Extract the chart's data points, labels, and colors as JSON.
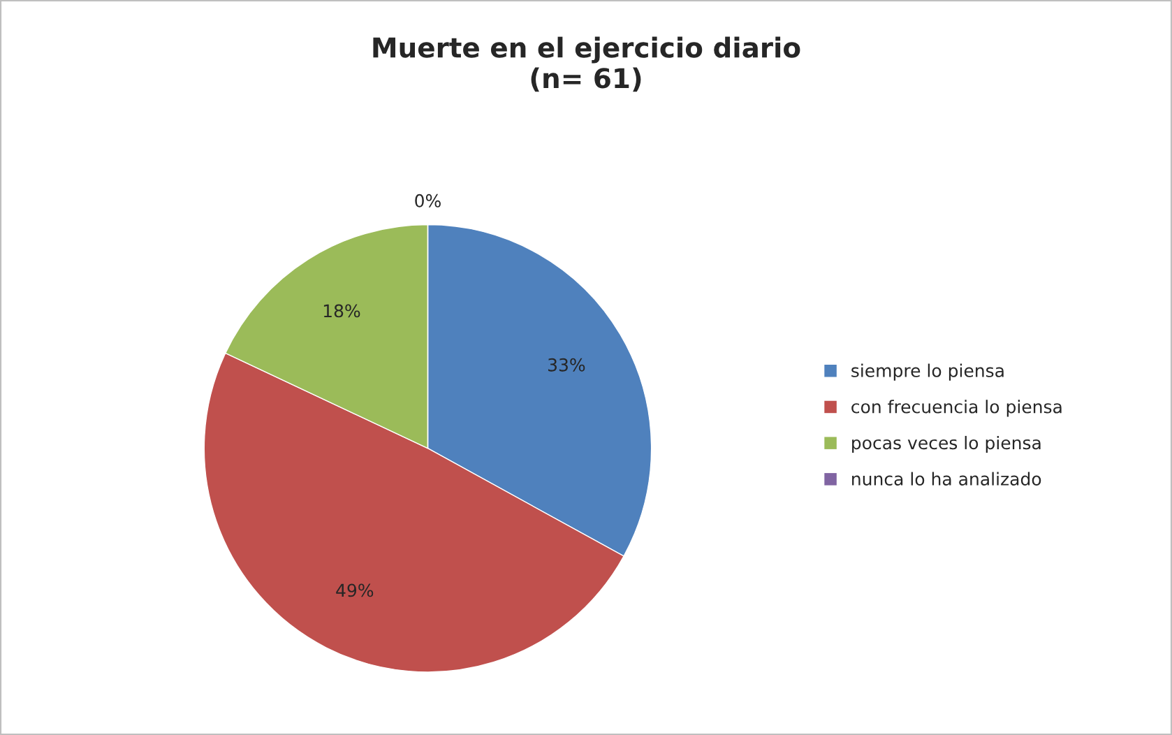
{
  "chart_data": {
    "type": "pie",
    "title": "Muerte en el ejercicio diario\n(n= 61)",
    "categories": [
      "siempre lo piensa",
      "con frecuencia lo piensa",
      "pocas veces lo piensa",
      "nunca lo ha analizado"
    ],
    "values": [
      33,
      49,
      18,
      0
    ],
    "colors": [
      "#4f81bd",
      "#c0504d",
      "#9bbb59",
      "#8064a2"
    ],
    "value_labels": [
      "33%",
      "49%",
      "18%",
      "0%"
    ],
    "legend": "right"
  }
}
